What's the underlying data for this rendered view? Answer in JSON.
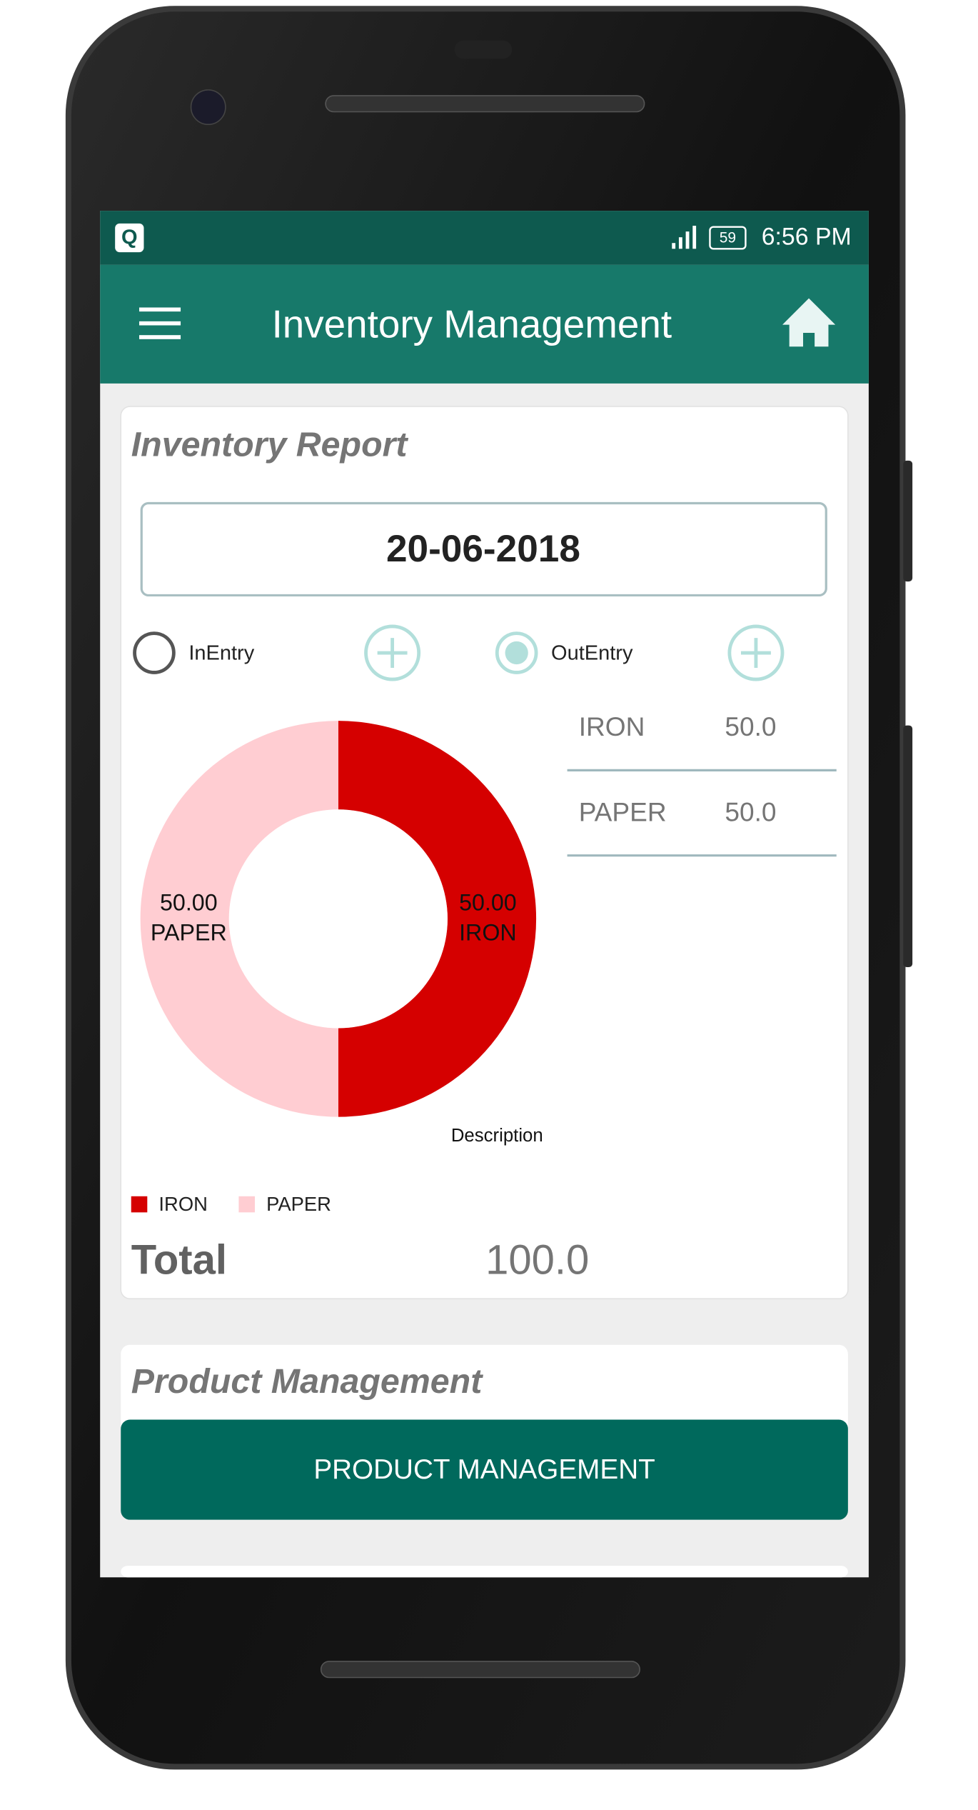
{
  "status_bar": {
    "notification": "Q",
    "battery": "59",
    "time": "6:56 PM"
  },
  "app_bar": {
    "title": "Inventory Management"
  },
  "inventory_report": {
    "title": "Inventory Report",
    "date": "20-06-2018",
    "options": [
      "InEntry",
      "OutEntry"
    ],
    "selected_option": 1,
    "table": {
      "rows": [
        [
          "IRON",
          "50.0"
        ],
        [
          "PAPER",
          "50.0"
        ]
      ]
    },
    "total": {
      "label": "Total",
      "value": "100.0"
    }
  },
  "chart_data": {
    "type": "pie",
    "categories": [
      "IRON",
      "PAPER"
    ],
    "values": [
      50,
      50
    ],
    "value_labels": [
      "50.00",
      "50.00"
    ],
    "colors": [
      "#d50000",
      "#ffcdd2"
    ],
    "description": "Description",
    "donut": true,
    "legend": true
  },
  "product_management": {
    "title": "Product Management",
    "button": "PRODUCT MANAGEMENT"
  }
}
